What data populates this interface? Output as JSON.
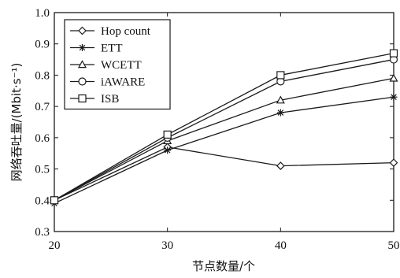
{
  "chart_data": {
    "type": "line",
    "title": "",
    "xlabel": "节点数量/个",
    "ylabel": "网络吞吐量/(Mbit·s⁻¹)",
    "x": [
      20,
      30,
      40,
      50
    ],
    "xticks": [
      "20",
      "30",
      "40",
      "50"
    ],
    "yticks": [
      "0.3",
      "0.4",
      "0.5",
      "0.6",
      "0.7",
      "0.8",
      "0.9",
      "1.0"
    ],
    "xlim": [
      20,
      50
    ],
    "ylim": [
      0.3,
      1.0
    ],
    "grid": false,
    "legend_position": "top-left",
    "series": [
      {
        "name": "Hop count",
        "marker": "diamond",
        "values": [
          0.4,
          0.57,
          0.51,
          0.52
        ]
      },
      {
        "name": "ETT",
        "marker": "asterisk",
        "values": [
          0.39,
          0.56,
          0.68,
          0.73
        ]
      },
      {
        "name": "WCETT",
        "marker": "triangle",
        "values": [
          0.4,
          0.59,
          0.72,
          0.79
        ]
      },
      {
        "name": "iAWARE",
        "marker": "circle",
        "values": [
          0.4,
          0.6,
          0.78,
          0.85
        ]
      },
      {
        "name": "ISB",
        "marker": "square",
        "values": [
          0.4,
          0.61,
          0.8,
          0.87
        ]
      }
    ],
    "line_color": "#1a1a1a"
  }
}
